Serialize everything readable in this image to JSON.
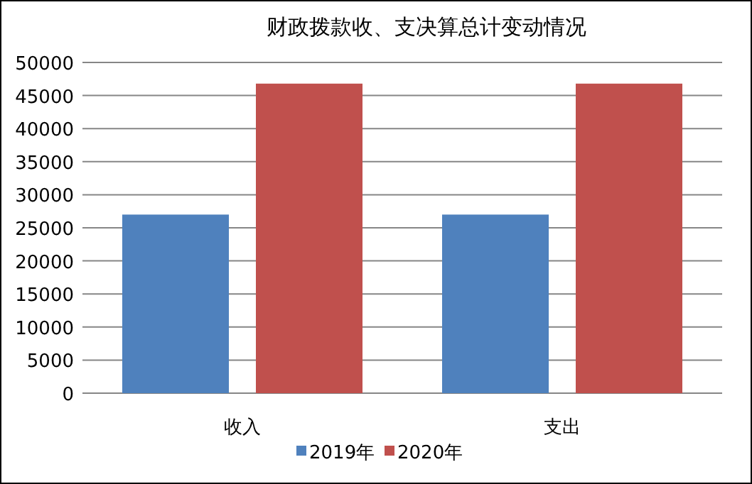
{
  "chart_data": {
    "type": "bar",
    "title": "财政拨款收、支决算总计变动情况",
    "categories": [
      "收入",
      "支出"
    ],
    "series": [
      {
        "name": "2019年",
        "color": "#4f81bd",
        "values": [
          27000,
          27000
        ]
      },
      {
        "name": "2020年",
        "color": "#c0504d",
        "values": [
          46800,
          46800
        ]
      }
    ],
    "ylim": [
      0,
      50000
    ],
    "yticks": [
      0,
      5000,
      10000,
      15000,
      20000,
      25000,
      30000,
      35000,
      40000,
      45000,
      50000
    ],
    "grid": "y",
    "legend": "bottom"
  }
}
